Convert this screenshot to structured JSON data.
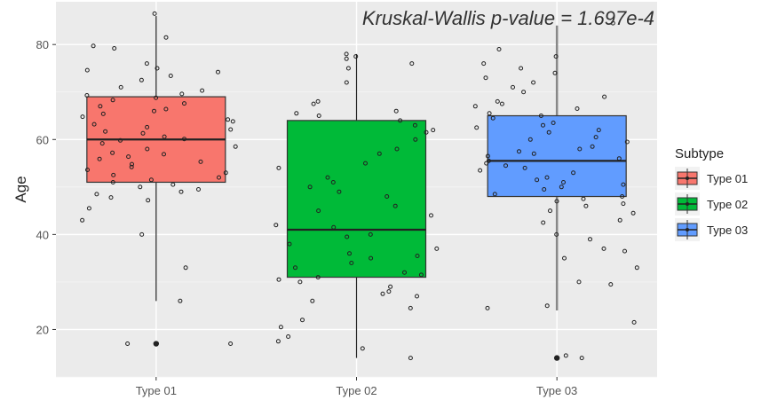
{
  "chart_data": {
    "type": "boxplot",
    "title": "",
    "xlabel": "",
    "ylabel": "Age",
    "categories": [
      "Type 01",
      "Type 02",
      "Type 03"
    ],
    "ylim": [
      10,
      89
    ],
    "yticks": [
      20,
      40,
      60,
      80
    ],
    "grid": true,
    "legend": {
      "title": "Subtype",
      "position": "right"
    },
    "annotation": "Kruskal-Wallis p-value = 1.697e-4",
    "series": [
      {
        "name": "Type 01",
        "color": "#f8766d",
        "whisker_low": 26,
        "q1": 51,
        "median": 60,
        "q3": 69,
        "whisker_high": 86,
        "outliers": [
          17
        ],
        "points": [
          86.5,
          81.5,
          79.7,
          79.2,
          76,
          75,
          74.6,
          74.2,
          73.4,
          72.5,
          71,
          70.3,
          69.6,
          69.3,
          68.8,
          68.3,
          67.6,
          67,
          66.4,
          66,
          65.4,
          64.8,
          64.2,
          63.8,
          63.2,
          62.6,
          62.1,
          61.7,
          61.3,
          60.6,
          60.1,
          59.8,
          59.2,
          58.5,
          58,
          57.2,
          56.9,
          56.4,
          55.9,
          55.3,
          54.8,
          54.2,
          53.6,
          53,
          52.5,
          52,
          51.5,
          51,
          50.5,
          50,
          49.5,
          49,
          48.5,
          47.8,
          47.2,
          45.5,
          43,
          40,
          33,
          26,
          17,
          17
        ]
      },
      {
        "name": "Type 02",
        "color": "#00ba38",
        "whisker_low": 14,
        "q1": 31,
        "median": 41,
        "q3": 64,
        "whisker_high": 78,
        "outliers": [],
        "points": [
          78,
          77.5,
          77,
          76,
          75,
          72,
          68,
          67.5,
          66,
          65.5,
          65,
          64,
          63,
          62,
          61.5,
          60,
          58,
          57,
          55,
          54,
          52,
          51,
          50,
          49,
          48,
          46,
          45,
          44,
          42,
          41.5,
          40,
          39.5,
          38,
          37,
          36,
          35.5,
          35,
          34,
          33,
          32,
          31.5,
          31,
          30.5,
          30,
          29,
          28,
          27.5,
          27,
          26,
          24.5,
          22,
          20.5,
          18.5,
          17.5,
          16,
          14
        ]
      },
      {
        "name": "Type 03",
        "color": "#619cff",
        "whisker_low": 24,
        "q1": 48,
        "median": 55.5,
        "q3": 65,
        "whisker_high": 84,
        "outliers": [
          14
        ],
        "points": [
          84.5,
          79,
          77.5,
          76,
          75,
          74,
          73,
          72,
          71,
          70,
          69,
          68,
          67.5,
          67,
          66.5,
          65.5,
          65,
          64.5,
          63.5,
          63,
          62.5,
          62,
          61.5,
          60.5,
          60,
          59.5,
          58.5,
          58,
          57.5,
          57,
          56.5,
          56,
          55.5,
          55,
          54.5,
          54,
          53.5,
          53,
          52,
          51.5,
          51,
          50.5,
          50,
          49.5,
          48.5,
          48,
          47.5,
          47,
          46.5,
          46,
          45,
          44.5,
          43,
          42.5,
          40,
          39,
          37,
          36.5,
          35,
          33,
          30,
          29.5,
          25,
          24.5,
          21.5,
          14.5,
          14
        ]
      }
    ]
  }
}
